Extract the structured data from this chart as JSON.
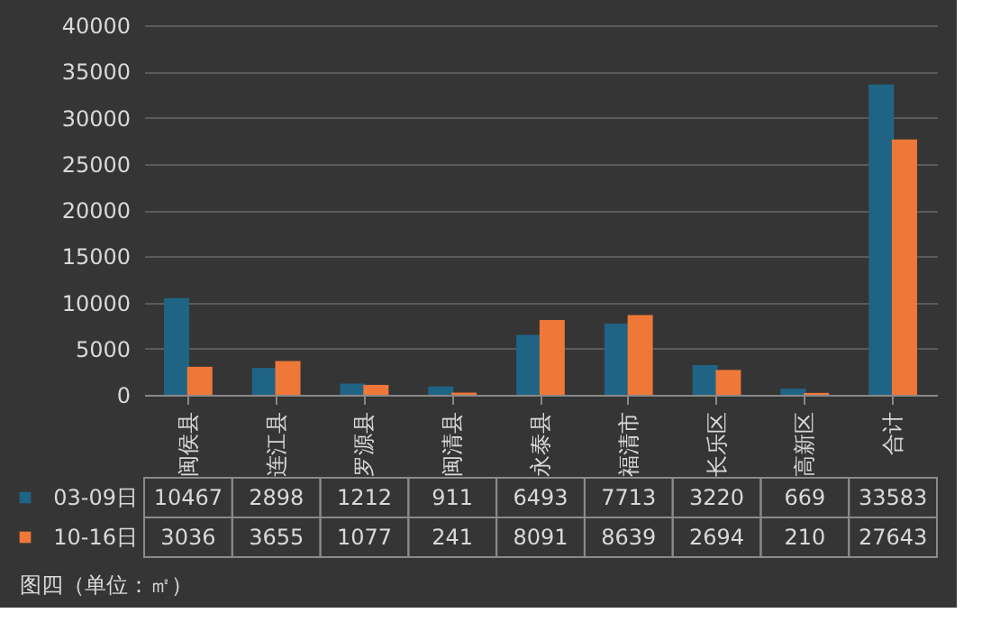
{
  "chart_data": {
    "type": "bar",
    "categories": [
      "闽侯县",
      "连江县",
      "罗源县",
      "闽清县",
      "永泰县",
      "福清市",
      "长乐区",
      "高新区",
      "合计"
    ],
    "series": [
      {
        "name": "03-09日",
        "color": "#1f6485",
        "values": [
          10467,
          2898,
          1212,
          911,
          6493,
          7713,
          3220,
          669,
          33583
        ]
      },
      {
        "name": "10-16日",
        "color": "#ef7838",
        "values": [
          3036,
          3655,
          1077,
          241,
          8091,
          8639,
          2694,
          210,
          27643
        ]
      }
    ],
    "ylim": [
      0,
      40000
    ],
    "yticks": [
      0,
      5000,
      10000,
      15000,
      20000,
      25000,
      30000,
      35000,
      40000
    ],
    "grid": "y",
    "legend": "bottom",
    "data_labels": true,
    "annotations": [
      "图四（单位：㎡）"
    ]
  }
}
